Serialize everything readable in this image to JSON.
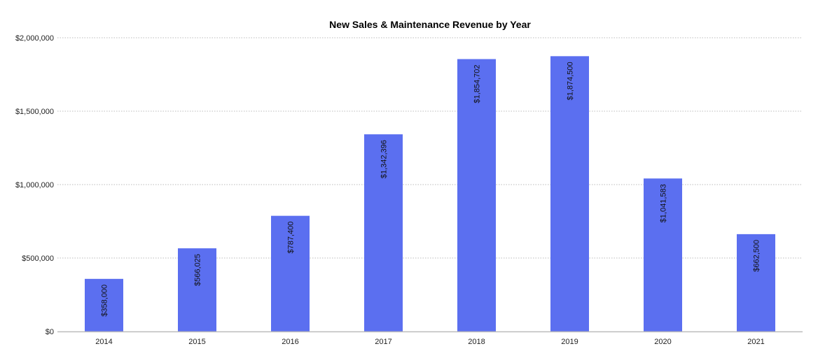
{
  "chart_data": {
    "type": "bar",
    "title": "New Sales & Maintenance Revenue by Year",
    "xlabel": "",
    "ylabel": "",
    "categories": [
      "2014",
      "2015",
      "2016",
      "2017",
      "2018",
      "2019",
      "2020",
      "2021"
    ],
    "values": [
      358000,
      566025,
      787400,
      1342396,
      1854702,
      1874500,
      1041583,
      662500
    ],
    "data_labels": [
      "$358,000",
      "$566,025",
      "$787,400",
      "$1,342,396",
      "$1,854,702",
      "$1,874,500",
      "$1,041,583",
      "$662,500"
    ],
    "ylim": [
      0,
      2000000
    ],
    "yticks": [
      0,
      500000,
      1000000,
      1500000,
      2000000
    ],
    "ytick_labels": [
      "$0",
      "$500,000",
      "$1,000,000",
      "$1,500,000",
      "$2,000,000"
    ],
    "grid": true,
    "legend": "none",
    "bar_color": "#5b6ff0"
  }
}
